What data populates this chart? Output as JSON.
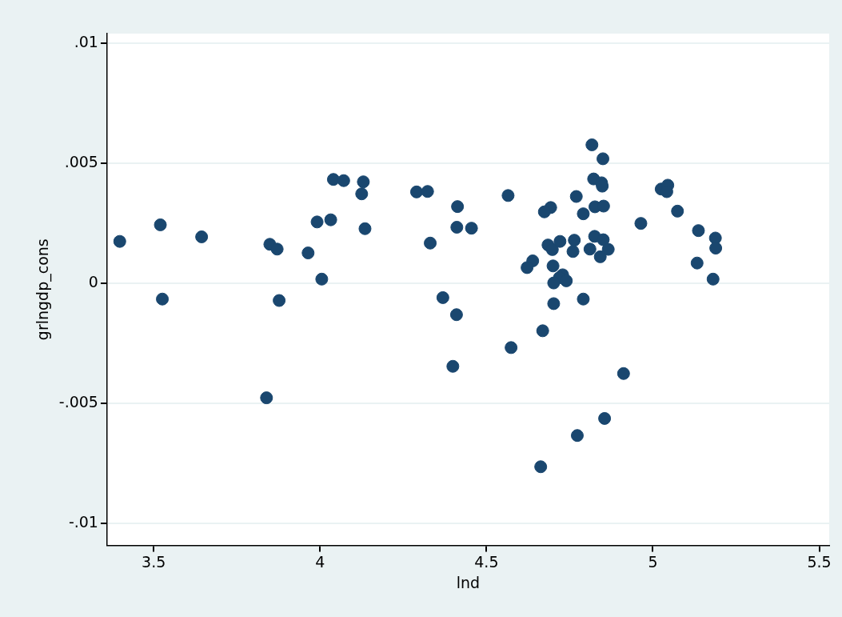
{
  "chart_data": {
    "type": "scatter",
    "xlabel": "lnd",
    "ylabel": "grlngdp_cons",
    "xlim": [
      3.36,
      5.53
    ],
    "ylim": [
      -0.0109,
      0.0104
    ],
    "xticks": [
      3.5,
      4,
      4.5,
      5,
      5.5
    ],
    "yticks": [
      {
        "value": -0.01,
        "label": "-.01"
      },
      {
        "value": -0.005,
        "label": "-.005"
      },
      {
        "value": 0,
        "label": "0"
      },
      {
        "value": 0.005,
        "label": ".005"
      },
      {
        "value": 0.01,
        "label": ".01"
      }
    ],
    "grid": "y",
    "marker": "circle",
    "legend": false,
    "series": [
      {
        "color": "#1a476f",
        "x": [
          3.398,
          3.52,
          3.644,
          3.526,
          3.839,
          3.849,
          3.871,
          3.877,
          3.964,
          4.005,
          3.991,
          4.032,
          4.04,
          4.071,
          4.13,
          4.125,
          4.135,
          4.29,
          4.323,
          4.413,
          4.411,
          4.455,
          4.331,
          4.565,
          4.369,
          4.41,
          4.574,
          4.399,
          4.817,
          4.85,
          4.822,
          4.846,
          4.848,
          4.77,
          4.693,
          4.674,
          4.791,
          4.826,
          4.852,
          4.964,
          5.025,
          5.045,
          5.042,
          5.074,
          5.137,
          5.188,
          5.189,
          5.133,
          5.181,
          4.685,
          4.698,
          4.721,
          4.764,
          4.76,
          4.825,
          4.851,
          4.811,
          4.866,
          4.842,
          4.639,
          4.622,
          4.7,
          4.729,
          4.719,
          4.74,
          4.702,
          4.702,
          4.791,
          4.669,
          4.912,
          4.855,
          4.773,
          4.663
        ],
        "values": [
          0.00175,
          0.00244,
          0.00194,
          -0.00065,
          -0.00476,
          0.00163,
          0.00143,
          -0.00071,
          0.00127,
          0.00018,
          0.00256,
          0.00265,
          0.00433,
          0.00428,
          0.00423,
          0.00373,
          0.00228,
          0.00381,
          0.00383,
          0.0032,
          0.00234,
          0.0023,
          0.00168,
          0.00366,
          -0.00059,
          -0.0013,
          -0.00267,
          -0.00345,
          0.00577,
          0.00519,
          0.00435,
          0.00419,
          0.00405,
          0.00362,
          0.00316,
          0.00298,
          0.0029,
          0.00319,
          0.00322,
          0.0025,
          0.00393,
          0.00409,
          0.00382,
          0.00301,
          0.0022,
          0.00189,
          0.00147,
          0.00085,
          0.00018,
          0.0016,
          0.00141,
          0.00175,
          0.0018,
          0.00133,
          0.00196,
          0.00182,
          0.00143,
          0.00142,
          0.00111,
          0.00094,
          0.00066,
          0.00073,
          0.00036,
          0.00024,
          0.00011,
          2e-05,
          -0.00084,
          -0.00065,
          -0.00197,
          -0.00375,
          -0.00562,
          -0.00633,
          -0.00763
        ]
      }
    ]
  }
}
